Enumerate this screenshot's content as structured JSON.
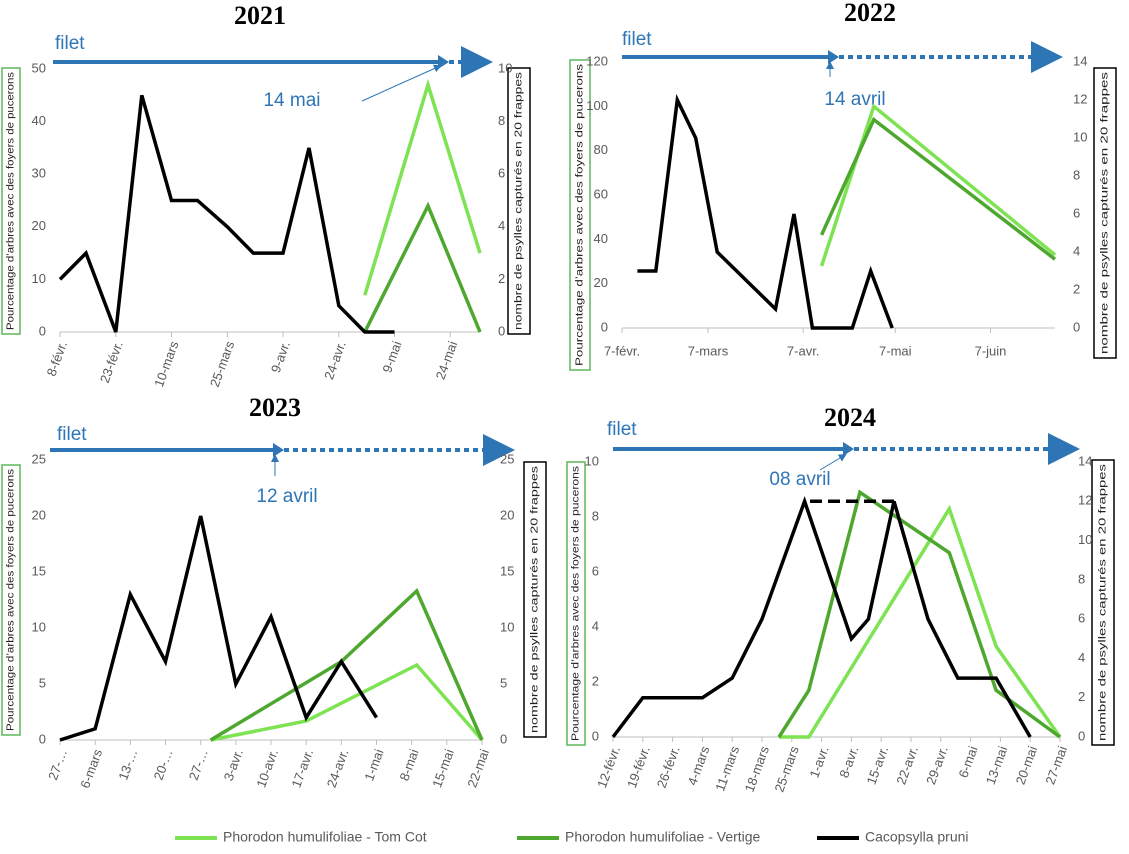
{
  "chart_data": [
    {
      "type": "line",
      "title": "2021",
      "net_label": "filet",
      "annotation": "14 mai",
      "ylabel": "Pourcentage d’arbres avec des foyers de pucerons",
      "y2label": "nombre de psylles capturés en 20 frappes",
      "xlim": [
        39,
        152
      ],
      "xticks": [
        {
          "value": 39,
          "label": "8-févr."
        },
        {
          "value": 54,
          "label": "23-févr."
        },
        {
          "value": 69,
          "label": "10-mars"
        },
        {
          "value": 84,
          "label": "25-mars"
        },
        {
          "value": 99,
          "label": "9-avr."
        },
        {
          "value": 114,
          "label": "24-avr."
        },
        {
          "value": 129,
          "label": "9-mai"
        },
        {
          "value": 144,
          "label": "24-mai"
        }
      ],
      "ylim": [
        0,
        50
      ],
      "yticks": [
        0,
        10,
        20,
        30,
        40,
        50
      ],
      "y2lim": [
        0,
        10
      ],
      "y2ticks": [
        0,
        2,
        4,
        6,
        8,
        10
      ],
      "series": [
        {
          "x": [
            121,
            138,
            152
          ],
          "values": [
            7,
            47,
            15
          ]
        },
        {
          "x": [
            121,
            138,
            152
          ],
          "values": [
            0,
            24,
            0
          ]
        },
        {
          "axis": "y2",
          "x": [
            39,
            46,
            54,
            61,
            69,
            76,
            84,
            91,
            99,
            106,
            114,
            121,
            129
          ],
          "values": [
            2,
            3,
            0,
            9,
            5,
            5,
            4,
            3,
            3,
            7,
            1,
            0,
            0
          ]
        }
      ]
    },
    {
      "type": "line",
      "title": "2022",
      "net_label": "filet",
      "annotation": "14 avril",
      "ylabel": "Pourcentage d’arbres avec des foyers de pucerons",
      "y2label": "nombre de psylles capturés en 20 frappes",
      "xlim": [
        38,
        179
      ],
      "xticks": [
        {
          "value": 38,
          "label": "7-févr."
        },
        {
          "value": 66,
          "label": "7-mars"
        },
        {
          "value": 97,
          "label": "7-avr."
        },
        {
          "value": 127,
          "label": "7-mai"
        },
        {
          "value": 158,
          "label": "7-juin"
        }
      ],
      "ylim": [
        0,
        120
      ],
      "yticks": [
        0,
        20,
        40,
        60,
        80,
        100,
        120
      ],
      "y2lim": [
        0,
        14
      ],
      "y2ticks": [
        0,
        2,
        4,
        6,
        8,
        10,
        12,
        14
      ],
      "series": [
        {
          "x": [
            103,
            120,
            179
          ],
          "values": [
            28,
            100,
            33
          ]
        },
        {
          "x": [
            103,
            120,
            179
          ],
          "values": [
            42,
            94,
            31
          ]
        },
        {
          "axis": "y2",
          "x": [
            43,
            49,
            56,
            62,
            69,
            88,
            94,
            100,
            113,
            119,
            126
          ],
          "values": [
            3,
            3,
            12,
            10,
            4,
            1,
            6,
            0,
            0,
            3,
            0
          ]
        }
      ]
    },
    {
      "type": "line",
      "title": "2023",
      "net_label": "filet",
      "annotation": "12 avril",
      "ylabel": "Pourcentage d’arbres avec des foyers de pucerons",
      "y2label": "nombre de psylles capturés en 20 frappes",
      "xlim": [
        58,
        142
      ],
      "xticks": [
        {
          "value": 58,
          "label": "27-…"
        },
        {
          "value": 65,
          "label": "6-mars"
        },
        {
          "value": 72,
          "label": "13-…"
        },
        {
          "value": 79,
          "label": "20-…"
        },
        {
          "value": 86,
          "label": "27-…"
        },
        {
          "value": 93,
          "label": "3-avr."
        },
        {
          "value": 100,
          "label": "10-avr."
        },
        {
          "value": 107,
          "label": "17-avr."
        },
        {
          "value": 114,
          "label": "24-avr."
        },
        {
          "value": 121,
          "label": "1-mai"
        },
        {
          "value": 128,
          "label": "8-mai"
        },
        {
          "value": 135,
          "label": "15-mai"
        },
        {
          "value": 142,
          "label": "22-mai"
        }
      ],
      "ylim": [
        0,
        25
      ],
      "yticks": [
        0,
        5,
        10,
        15,
        20,
        25
      ],
      "y2lim": [
        0,
        25
      ],
      "y2ticks": [
        0,
        5,
        10,
        15,
        20,
        25
      ],
      "series": [
        {
          "x": [
            88,
            107,
            129,
            142
          ],
          "values": [
            0,
            1.7,
            6.7,
            0
          ]
        },
        {
          "x": [
            88,
            114,
            129,
            142
          ],
          "values": [
            0,
            7,
            13.3,
            0
          ]
        },
        {
          "axis": "y2",
          "x": [
            58,
            65,
            72,
            79,
            86,
            93,
            100,
            107,
            114,
            121
          ],
          "values": [
            0,
            1,
            13,
            7,
            20,
            5,
            11,
            2,
            7,
            2
          ]
        }
      ]
    },
    {
      "type": "line",
      "title": "2024",
      "net_label": "filet",
      "annotation": "08 avril",
      "ylabel": "Pourcentage d’arbres avec des foyers de pucerons",
      "y2label": "nombre de psylles capturés en 20 frappes",
      "xlim": [
        43,
        148
      ],
      "xticks": [
        {
          "value": 43,
          "label": "12-févr."
        },
        {
          "value": 50,
          "label": "19-févr."
        },
        {
          "value": 57,
          "label": "26-févr."
        },
        {
          "value": 64,
          "label": "4-mars"
        },
        {
          "value": 71,
          "label": "11-mars"
        },
        {
          "value": 78,
          "label": "18-mars"
        },
        {
          "value": 85,
          "label": "25-mars"
        },
        {
          "value": 92,
          "label": "1-avr."
        },
        {
          "value": 99,
          "label": "8-avr."
        },
        {
          "value": 106,
          "label": "15-avr."
        },
        {
          "value": 113,
          "label": "22-avr."
        },
        {
          "value": 120,
          "label": "29-avr."
        },
        {
          "value": 127,
          "label": "6-mai"
        },
        {
          "value": 134,
          "label": "13-mai"
        },
        {
          "value": 141,
          "label": "20-mai"
        },
        {
          "value": 148,
          "label": "27-mai"
        }
      ],
      "ylim": [
        0,
        10
      ],
      "yticks": [
        0,
        2,
        4,
        6,
        8,
        10
      ],
      "y2lim": [
        0,
        14
      ],
      "y2ticks": [
        0,
        2,
        4,
        6,
        8,
        10,
        12,
        14
      ],
      "series": [
        {
          "x": [
            82,
            89,
            122,
            133,
            148
          ],
          "values": [
            0,
            0,
            8.3,
            3.3,
            0
          ]
        },
        {
          "x": [
            82,
            89,
            101,
            122,
            133,
            148
          ],
          "values": [
            0,
            1.7,
            8.9,
            6.7,
            1.7,
            0
          ]
        },
        {
          "axis": "y2",
          "x": [
            43,
            50,
            57,
            64,
            71,
            78,
            88,
            99,
            103,
            109,
            117,
            124,
            133,
            141
          ],
          "values": [
            0,
            2,
            2,
            2,
            3,
            6,
            12,
            5,
            6,
            12,
            6,
            3,
            3,
            0
          ]
        }
      ]
    }
  ],
  "legend": [
    {
      "name": "Phorodon humulifoliae - Tom Cot",
      "color": "#7ee352"
    },
    {
      "name": "Phorodon humulifoliae - Vertige",
      "color": "#4ea72e"
    },
    {
      "name": "Cacopsylla pruni",
      "color": "#000000"
    }
  ]
}
